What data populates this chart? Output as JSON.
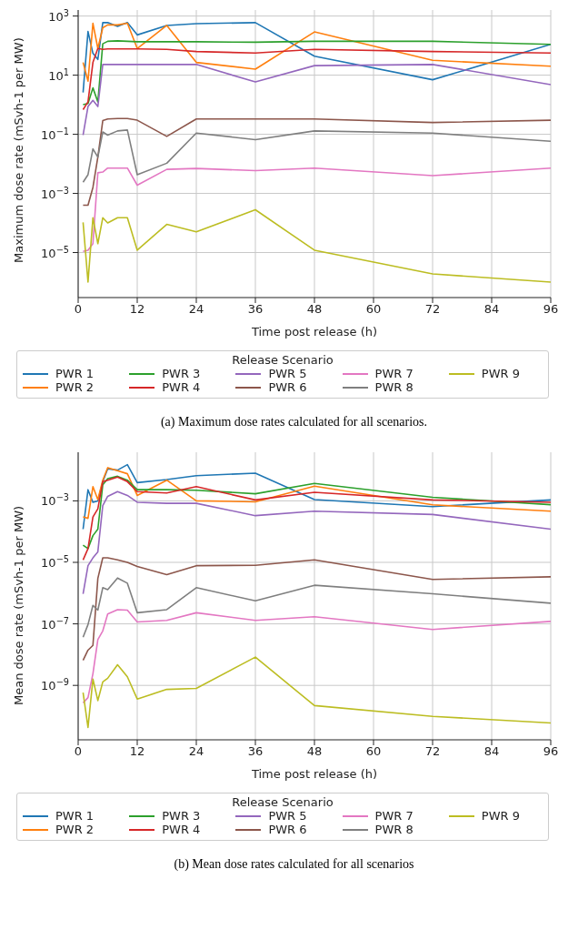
{
  "chart_data": [
    {
      "type": "line",
      "xlabel": "Time post release (h)",
      "ylabel": "Maximum dose rate (mSvh-1 per MW)",
      "legend_title": "Release Scenario",
      "legend": "bottom",
      "grid": true,
      "log": "y",
      "x": [
        1,
        2,
        3,
        4,
        5,
        6,
        8,
        10,
        12,
        18,
        24,
        36,
        48,
        72,
        96
      ],
      "xlim": [
        0,
        96
      ],
      "xticks": [
        0,
        12,
        24,
        36,
        48,
        60,
        72,
        84,
        96
      ],
      "ylim": [
        3e-07,
        1600
      ],
      "yticks": [
        {
          "value": 1e-05,
          "label": "10$^{−5}$"
        },
        {
          "value": 0.001,
          "label": "10$^{−3}$"
        },
        {
          "value": 0.1,
          "label": "10$^{−1}$"
        },
        {
          "value": 10,
          "label": "10$^{1}$"
        },
        {
          "value": 1000,
          "label": "10$^{3}$"
        }
      ],
      "series": [
        {
          "name": "PWR 1",
          "color": "#1f77b4",
          "values": [
            2.6,
            300,
            55,
            34,
            600,
            600,
            450,
            600,
            230,
            480,
            550,
            600,
            44,
            7,
            110
          ]
        },
        {
          "name": "PWR 2",
          "color": "#ff7f0e",
          "values": [
            27,
            6.3,
            570,
            80,
            400,
            500,
            500,
            570,
            80,
            480,
            27,
            16,
            290,
            32,
            20
          ]
        },
        {
          "name": "PWR 3",
          "color": "#2ca02c",
          "values": [
            1,
            1.1,
            3.7,
            1.25,
            115,
            140,
            145,
            140,
            135,
            135,
            135,
            130,
            140,
            140,
            110
          ]
        },
        {
          "name": "PWR 4",
          "color": "#d62728",
          "values": [
            0.68,
            1.25,
            27,
            80,
            75,
            77,
            77,
            77,
            77,
            75,
            63,
            56,
            75,
            63,
            56
          ]
        },
        {
          "name": "PWR 5",
          "color": "#9467bd",
          "values": [
            0.095,
            0.87,
            1.4,
            0.87,
            23,
            23,
            23,
            23,
            23,
            23,
            23,
            5.9,
            21,
            23,
            4.8
          ]
        },
        {
          "name": "PWR 6",
          "color": "#8c564b",
          "values": [
            0.0004,
            0.0004,
            0.0016,
            0.017,
            0.29,
            0.33,
            0.34,
            0.34,
            0.3,
            0.085,
            0.33,
            0.33,
            0.33,
            0.25,
            0.3
          ]
        },
        {
          "name": "PWR 7",
          "color": "#e377c2",
          "values": [
            1.1e-05,
            1.2e-05,
            2e-05,
            0.005,
            0.0053,
            0.0072,
            0.0072,
            0.0072,
            0.0019,
            0.0065,
            0.007,
            0.0059,
            0.0072,
            0.004,
            0.0072
          ]
        },
        {
          "name": "PWR 8",
          "color": "#7f7f7f",
          "values": [
            0.0024,
            0.0043,
            0.032,
            0.017,
            0.12,
            0.094,
            0.13,
            0.14,
            0.0043,
            0.0105,
            0.11,
            0.066,
            0.13,
            0.11,
            0.058
          ]
        },
        {
          "name": "PWR 9",
          "color": "#bcbd22",
          "values": [
            0.000105,
            1e-06,
            0.00015,
            2e-05,
            0.00015,
            0.0001,
            0.00015,
            0.00015,
            1.2e-05,
            9e-05,
            5e-05,
            0.00028,
            1.2e-05,
            1.9e-06,
            1e-06
          ]
        }
      ],
      "annotations": [
        "(a) Maximum dose rates calculated for all scenarios."
      ]
    },
    {
      "type": "line",
      "xlabel": "Time post release (h)",
      "ylabel": "Mean dose rate (mSvh-1 per MW)",
      "legend_title": "Release Scenario",
      "legend": "bottom",
      "grid": true,
      "log": "y",
      "x": [
        1,
        2,
        3,
        4,
        5,
        6,
        8,
        10,
        12,
        18,
        24,
        36,
        48,
        72,
        96
      ],
      "xlim": [
        0,
        96
      ],
      "xticks": [
        0,
        12,
        24,
        36,
        48,
        60,
        72,
        84,
        96
      ],
      "ylim": [
        1.7e-11,
        0.038
      ],
      "yticks": [
        {
          "value": 1e-09,
          "label": "10$^{−9}$"
        },
        {
          "value": 1e-07,
          "label": "10$^{−7}$"
        },
        {
          "value": 1e-05,
          "label": "10$^{−5}$"
        },
        {
          "value": 0.001,
          "label": "10$^{−3}$"
        }
      ],
      "series": [
        {
          "name": "PWR 1",
          "color": "#1f77b4",
          "values": [
            0.00012,
            0.0023,
            0.0009,
            0.001,
            0.0042,
            0.011,
            0.01,
            0.015,
            0.0039,
            0.0049,
            0.0066,
            0.0079,
            0.0011,
            0.00065,
            0.00107
          ]
        },
        {
          "name": "PWR 2",
          "color": "#ff7f0e",
          "values": [
            0.0003,
            0.00027,
            0.0029,
            0.0011,
            0.0047,
            0.012,
            0.0095,
            0.0076,
            0.0015,
            0.0047,
            0.001,
            0.00093,
            0.003,
            0.00074,
            0.00046
          ]
        },
        {
          "name": "PWR 3",
          "color": "#2ca02c",
          "values": [
            3.6e-05,
            2.8e-05,
            7.4e-05,
            0.00012,
            0.0033,
            0.0053,
            0.0063,
            0.0047,
            0.0023,
            0.0023,
            0.0022,
            0.0017,
            0.0037,
            0.0013,
            0.00075
          ]
        },
        {
          "name": "PWR 4",
          "color": "#d62728",
          "values": [
            1.2e-05,
            2.8e-05,
            0.0003,
            0.00055,
            0.0042,
            0.0047,
            0.0059,
            0.0042,
            0.002,
            0.0018,
            0.0029,
            0.00107,
            0.0019,
            0.00107,
            0.0009
          ]
        },
        {
          "name": "PWR 5",
          "color": "#9467bd",
          "values": [
            9.5e-07,
            7.8e-06,
            1.4e-05,
            2.2e-05,
            0.0007,
            0.0014,
            0.002,
            0.0015,
            0.0009,
            0.00083,
            0.00083,
            0.00033,
            0.00046,
            0.00036,
            0.00012
          ]
        },
        {
          "name": "PWR 6",
          "color": "#8c564b",
          "values": [
            6.5e-09,
            1.4e-08,
            2e-08,
            3e-06,
            1.4e-05,
            1.4e-05,
            1.2e-05,
            1e-05,
            7.4e-06,
            4e-06,
            7.8e-06,
            8e-06,
            1.2e-05,
            2.8e-06,
            3.4e-06
          ]
        },
        {
          "name": "PWR 7",
          "color": "#e377c2",
          "values": [
            2.7e-10,
            4e-10,
            2.4e-09,
            3.1e-08,
            5.9e-08,
            2.1e-07,
            2.9e-07,
            2.8e-07,
            1.15e-07,
            1.3e-07,
            2.3e-07,
            1.3e-07,
            1.7e-07,
            6.6e-08,
            1.2e-07
          ]
        },
        {
          "name": "PWR 8",
          "color": "#7f7f7f",
          "values": [
            3.7e-08,
            9.5e-08,
            4e-07,
            2.8e-07,
            1.5e-06,
            1.3e-06,
            3.1e-06,
            2.1e-06,
            2.3e-07,
            2.9e-07,
            1.5e-06,
            5.6e-07,
            1.8e-06,
            9.5e-07,
            4.7e-07
          ]
        },
        {
          "name": "PWR 9",
          "color": "#bcbd22",
          "values": [
            5.8e-10,
            4.3e-11,
            1.6e-09,
            3.2e-10,
            1.3e-09,
            1.7e-09,
            4.7e-09,
            1.9e-09,
            3.6e-10,
            7.4e-10,
            8e-10,
            8.3e-09,
            2.2e-10,
            9.8e-11,
            6e-11
          ]
        }
      ],
      "annotations": [
        "(b) Mean dose rates calculated for all scenarios"
      ]
    }
  ]
}
